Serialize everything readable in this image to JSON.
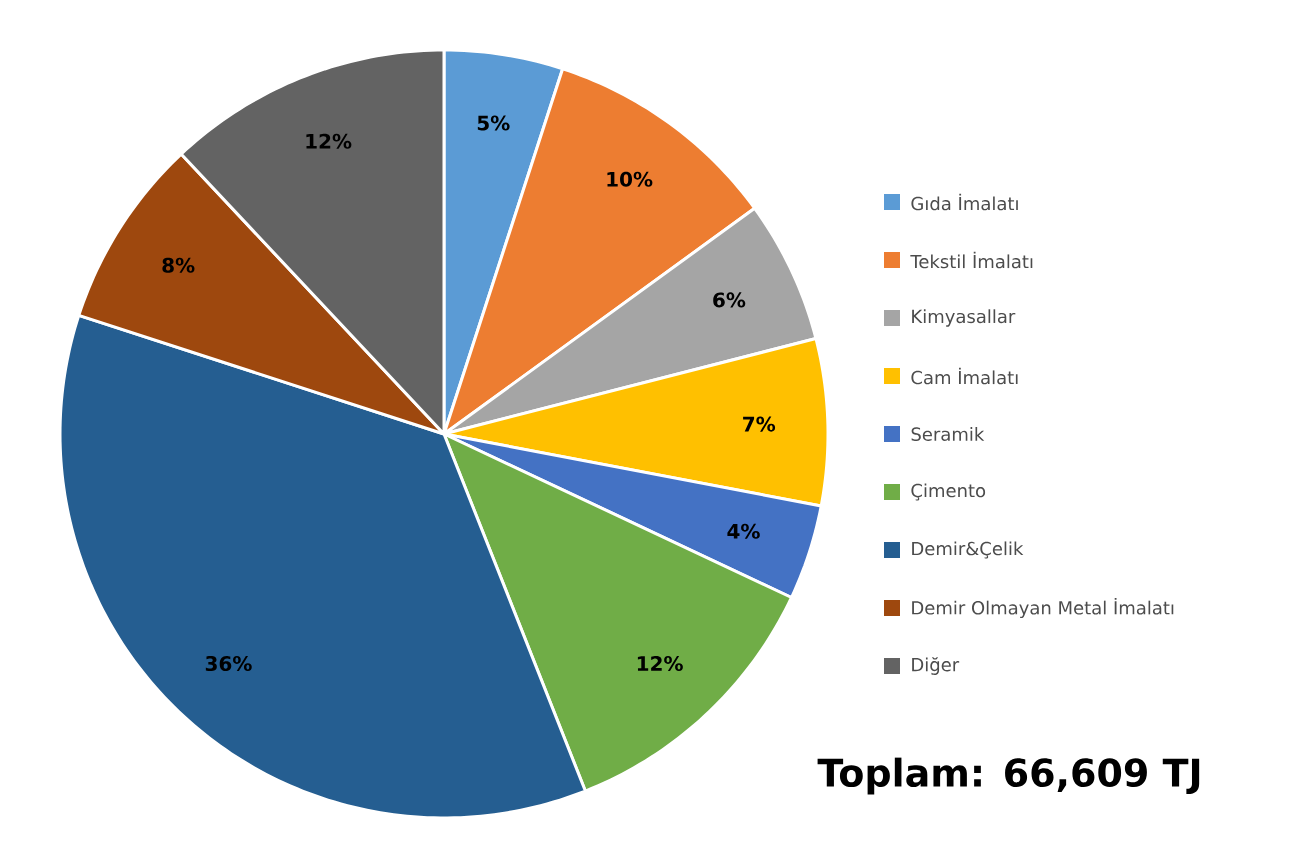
{
  "chart_data": {
    "type": "pie",
    "categories": [
      "Gıda İmalatı",
      "Tekstil İmalatı",
      "Kimyasallar",
      "Cam İmalatı",
      "Seramik",
      "Çimento",
      "Demir&Çelik",
      "Demir Olmayan Metal İmalatı",
      "Diğer"
    ],
    "values": [
      5,
      10,
      6,
      7,
      4,
      12,
      36,
      8,
      12
    ],
    "colors": [
      "#5b9bd5",
      "#ed7d31",
      "#a5a5a5",
      "#ffc000",
      "#4472c4",
      "#70ad47",
      "#255e91",
      "#9e480e",
      "#636363"
    ],
    "value_labels": [
      "5%",
      "10%",
      "6%",
      "7%",
      "4%",
      "12%",
      "36%",
      "8%",
      "12%"
    ],
    "legend": "right",
    "annotations": [
      "Toplam: 66,609 TJ"
    ]
  }
}
